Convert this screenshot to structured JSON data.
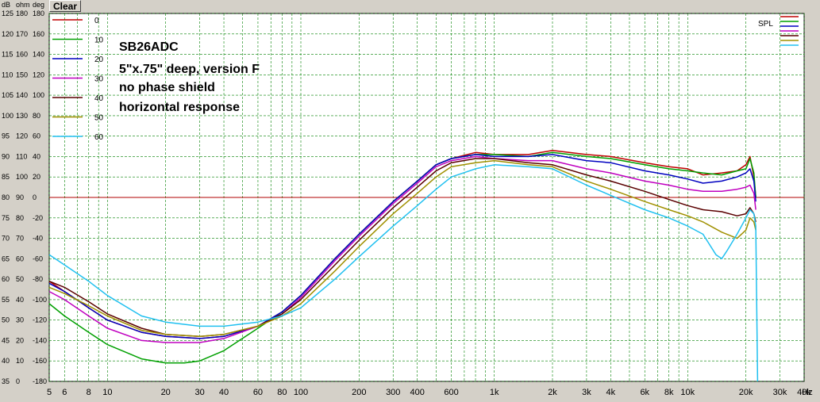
{
  "toolbar": {
    "clear_label": "Clear"
  },
  "chart_data": {
    "type": "line",
    "title_lines": [
      "SB26ADC",
      "5\"x.75\" deep, version F",
      "no phase shield",
      "horizontal response"
    ],
    "axis_units": [
      "dB",
      "ohm",
      "deg"
    ],
    "x_unit": "Hz",
    "xscale": "log",
    "xlim": [
      5,
      40000
    ],
    "ylim_db": [
      35,
      125
    ],
    "ylim_ohm": [
      0,
      180
    ],
    "ylim_deg": [
      -180,
      180
    ],
    "grid": true,
    "legend_position": "top-left",
    "spl_label": "SPL",
    "x_ticks": [
      {
        "v": 5,
        "label": "5"
      },
      {
        "v": 6,
        "label": "6"
      },
      {
        "v": 8,
        "label": "8"
      },
      {
        "v": 10,
        "label": "10"
      },
      {
        "v": 20,
        "label": "20"
      },
      {
        "v": 30,
        "label": "30"
      },
      {
        "v": 40,
        "label": "40"
      },
      {
        "v": 60,
        "label": "60"
      },
      {
        "v": 80,
        "label": "80"
      },
      {
        "v": 100,
        "label": "100"
      },
      {
        "v": 200,
        "label": "200"
      },
      {
        "v": 300,
        "label": "300"
      },
      {
        "v": 400,
        "label": "400"
      },
      {
        "v": 600,
        "label": "600"
      },
      {
        "v": 1000,
        "label": "1k"
      },
      {
        "v": 2000,
        "label": "2k"
      },
      {
        "v": 3000,
        "label": "3k"
      },
      {
        "v": 4000,
        "label": "4k"
      },
      {
        "v": 6000,
        "label": "6k"
      },
      {
        "v": 8000,
        "label": "8k"
      },
      {
        "v": 10000,
        "label": "10k"
      },
      {
        "v": 20000,
        "label": "20k"
      },
      {
        "v": 30000,
        "label": "30k"
      },
      {
        "v": 40000,
        "label": "40k"
      }
    ],
    "y_ticks": [
      {
        "db": "125",
        "ohm": "180",
        "deg": "180"
      },
      {
        "db": "120",
        "ohm": "170",
        "deg": "160"
      },
      {
        "db": "115",
        "ohm": "160",
        "deg": "140"
      },
      {
        "db": "110",
        "ohm": "150",
        "deg": "120"
      },
      {
        "db": "105",
        "ohm": "140",
        "deg": "100"
      },
      {
        "db": "100",
        "ohm": "130",
        "deg": "80"
      },
      {
        "db": "95",
        "ohm": "120",
        "deg": "60"
      },
      {
        "db": "90",
        "ohm": "110",
        "deg": "40"
      },
      {
        "db": "85",
        "ohm": "100",
        "deg": "20"
      },
      {
        "db": "80",
        "ohm": "90",
        "deg": "0"
      },
      {
        "db": "75",
        "ohm": "80",
        "deg": "-20"
      },
      {
        "db": "70",
        "ohm": "70",
        "deg": "-40"
      },
      {
        "db": "65",
        "ohm": "60",
        "deg": "-60"
      },
      {
        "db": "60",
        "ohm": "50",
        "deg": "-80"
      },
      {
        "db": "55",
        "ohm": "40",
        "deg": "-100"
      },
      {
        "db": "50",
        "ohm": "30",
        "deg": "-120"
      },
      {
        "db": "45",
        "ohm": "20",
        "deg": "-140"
      },
      {
        "db": "40",
        "ohm": "10",
        "deg": "-160"
      },
      {
        "db": "35",
        "ohm": "0",
        "deg": "-180"
      }
    ],
    "reference_db": 80,
    "series": [
      {
        "name": "0",
        "color": "#c00000",
        "points": [
          [
            5,
            59.5
          ],
          [
            6,
            57
          ],
          [
            8,
            53
          ],
          [
            10,
            50
          ],
          [
            15,
            47
          ],
          [
            20,
            46
          ],
          [
            30,
            45.5
          ],
          [
            40,
            46
          ],
          [
            60,
            48.5
          ],
          [
            80,
            52
          ],
          [
            100,
            56
          ],
          [
            150,
            65
          ],
          [
            200,
            71
          ],
          [
            300,
            79
          ],
          [
            400,
            84
          ],
          [
            500,
            88
          ],
          [
            600,
            89.5
          ],
          [
            800,
            91
          ],
          [
            1000,
            90.5
          ],
          [
            1500,
            90.5
          ],
          [
            2000,
            91.5
          ],
          [
            3000,
            90.5
          ],
          [
            4000,
            90
          ],
          [
            6000,
            88.5
          ],
          [
            8000,
            87.5
          ],
          [
            10000,
            87
          ],
          [
            12000,
            85.5
          ],
          [
            15000,
            86
          ],
          [
            18000,
            86.5
          ],
          [
            20000,
            88
          ],
          [
            21000,
            90
          ],
          [
            22000,
            85
          ],
          [
            22500,
            80
          ]
        ]
      },
      {
        "name": "10",
        "color": "#00a000",
        "points": [
          [
            5,
            54
          ],
          [
            6,
            51
          ],
          [
            8,
            47
          ],
          [
            10,
            44
          ],
          [
            15,
            40.5
          ],
          [
            20,
            39.5
          ],
          [
            25,
            39.5
          ],
          [
            30,
            40
          ],
          [
            40,
            42.5
          ],
          [
            60,
            48
          ],
          [
            80,
            52
          ],
          [
            100,
            56
          ],
          [
            150,
            65
          ],
          [
            200,
            71
          ],
          [
            300,
            79
          ],
          [
            400,
            84
          ],
          [
            500,
            88
          ],
          [
            600,
            89.5
          ],
          [
            800,
            90.5
          ],
          [
            1000,
            90.5
          ],
          [
            1500,
            90
          ],
          [
            2000,
            91
          ],
          [
            3000,
            90
          ],
          [
            4000,
            89.5
          ],
          [
            6000,
            88
          ],
          [
            8000,
            87
          ],
          [
            10000,
            86.5
          ],
          [
            12000,
            86
          ],
          [
            15000,
            85.5
          ],
          [
            18000,
            86.5
          ],
          [
            20000,
            87
          ],
          [
            21000,
            89.5
          ],
          [
            22000,
            86
          ],
          [
            22500,
            80
          ]
        ]
      },
      {
        "name": "20",
        "color": "#0000c0",
        "points": [
          [
            5,
            59
          ],
          [
            6,
            57
          ],
          [
            8,
            53
          ],
          [
            10,
            50
          ],
          [
            15,
            47
          ],
          [
            20,
            46
          ],
          [
            30,
            45.5
          ],
          [
            40,
            46
          ],
          [
            60,
            48.5
          ],
          [
            80,
            52
          ],
          [
            100,
            56
          ],
          [
            150,
            65
          ],
          [
            200,
            71
          ],
          [
            300,
            79
          ],
          [
            400,
            84
          ],
          [
            500,
            88
          ],
          [
            600,
            89.5
          ],
          [
            800,
            90.5
          ],
          [
            1000,
            90
          ],
          [
            1500,
            90
          ],
          [
            2000,
            90.5
          ],
          [
            3000,
            89
          ],
          [
            4000,
            88.5
          ],
          [
            6000,
            86.5
          ],
          [
            8000,
            85.5
          ],
          [
            10000,
            84.5
          ],
          [
            12000,
            83.5
          ],
          [
            15000,
            84
          ],
          [
            18000,
            85
          ],
          [
            20000,
            86
          ],
          [
            21000,
            87
          ],
          [
            22000,
            84
          ],
          [
            22500,
            79
          ]
        ]
      },
      {
        "name": "30",
        "color": "#c000c0",
        "points": [
          [
            5,
            57
          ],
          [
            6,
            55
          ],
          [
            8,
            51
          ],
          [
            10,
            48
          ],
          [
            15,
            45
          ],
          [
            20,
            44.5
          ],
          [
            30,
            44.5
          ],
          [
            40,
            45.5
          ],
          [
            60,
            48.5
          ],
          [
            80,
            51.5
          ],
          [
            100,
            55.5
          ],
          [
            150,
            64.5
          ],
          [
            200,
            70.5
          ],
          [
            300,
            78.5
          ],
          [
            400,
            83.5
          ],
          [
            500,
            87.5
          ],
          [
            600,
            89
          ],
          [
            800,
            90
          ],
          [
            1000,
            89.5
          ],
          [
            1500,
            89
          ],
          [
            2000,
            89
          ],
          [
            3000,
            87
          ],
          [
            4000,
            86
          ],
          [
            6000,
            84
          ],
          [
            8000,
            83
          ],
          [
            10000,
            82
          ],
          [
            12000,
            81.5
          ],
          [
            15000,
            81.5
          ],
          [
            18000,
            82
          ],
          [
            20000,
            82.5
          ],
          [
            21000,
            83
          ],
          [
            22000,
            81
          ],
          [
            22500,
            77
          ]
        ]
      },
      {
        "name": "40",
        "color": "#5a0000",
        "points": [
          [
            5,
            59.5
          ],
          [
            6,
            58
          ],
          [
            8,
            54.5
          ],
          [
            10,
            51.5
          ],
          [
            15,
            48
          ],
          [
            20,
            46.5
          ],
          [
            30,
            46
          ],
          [
            40,
            46.5
          ],
          [
            60,
            48.5
          ],
          [
            80,
            51.5
          ],
          [
            100,
            55
          ],
          [
            150,
            63.5
          ],
          [
            200,
            69.5
          ],
          [
            300,
            77.5
          ],
          [
            400,
            82.5
          ],
          [
            500,
            86.5
          ],
          [
            600,
            88.5
          ],
          [
            800,
            89.5
          ],
          [
            1000,
            89.5
          ],
          [
            1500,
            88.5
          ],
          [
            2000,
            88
          ],
          [
            3000,
            85.5
          ],
          [
            4000,
            84
          ],
          [
            6000,
            81.5
          ],
          [
            8000,
            79.5
          ],
          [
            10000,
            78
          ],
          [
            12000,
            77
          ],
          [
            15000,
            76.5
          ],
          [
            18000,
            75.5
          ],
          [
            20000,
            76
          ],
          [
            21000,
            77.5
          ],
          [
            22000,
            76
          ],
          [
            22500,
            74
          ]
        ]
      },
      {
        "name": "50",
        "color": "#a09000",
        "points": [
          [
            5,
            58
          ],
          [
            6,
            56.5
          ],
          [
            8,
            53.5
          ],
          [
            10,
            51
          ],
          [
            15,
            47.5
          ],
          [
            20,
            46.5
          ],
          [
            30,
            46
          ],
          [
            40,
            46.5
          ],
          [
            60,
            48.5
          ],
          [
            80,
            51
          ],
          [
            100,
            54
          ],
          [
            150,
            62
          ],
          [
            200,
            68
          ],
          [
            300,
            76
          ],
          [
            400,
            81
          ],
          [
            500,
            85
          ],
          [
            600,
            87.5
          ],
          [
            800,
            88.5
          ],
          [
            1000,
            89
          ],
          [
            1500,
            88
          ],
          [
            2000,
            87.5
          ],
          [
            3000,
            84
          ],
          [
            4000,
            82
          ],
          [
            6000,
            79
          ],
          [
            8000,
            77
          ],
          [
            10000,
            75.5
          ],
          [
            12000,
            74
          ],
          [
            15000,
            71.5
          ],
          [
            18000,
            70
          ],
          [
            20000,
            72
          ],
          [
            21000,
            75
          ],
          [
            22000,
            74
          ],
          [
            22500,
            72
          ]
        ]
      },
      {
        "name": "60",
        "color": "#20c0f0",
        "points": [
          [
            5,
            66
          ],
          [
            6,
            63.5
          ],
          [
            8,
            59.5
          ],
          [
            10,
            56
          ],
          [
            15,
            51
          ],
          [
            20,
            49.5
          ],
          [
            30,
            48.5
          ],
          [
            40,
            48.5
          ],
          [
            60,
            49.5
          ],
          [
            80,
            51
          ],
          [
            100,
            53
          ],
          [
            150,
            60
          ],
          [
            200,
            65.5
          ],
          [
            300,
            73
          ],
          [
            400,
            78
          ],
          [
            500,
            82
          ],
          [
            600,
            85
          ],
          [
            800,
            87
          ],
          [
            1000,
            88
          ],
          [
            1500,
            87.5
          ],
          [
            2000,
            87
          ],
          [
            3000,
            83
          ],
          [
            4000,
            80.5
          ],
          [
            6000,
            77
          ],
          [
            8000,
            75
          ],
          [
            10000,
            73
          ],
          [
            12000,
            71
          ],
          [
            14000,
            66
          ],
          [
            15000,
            65
          ],
          [
            16000,
            67
          ],
          [
            18000,
            71
          ],
          [
            20000,
            75
          ],
          [
            21000,
            77
          ],
          [
            22000,
            76
          ],
          [
            22500,
            73
          ],
          [
            23000,
            35
          ]
        ]
      }
    ]
  }
}
